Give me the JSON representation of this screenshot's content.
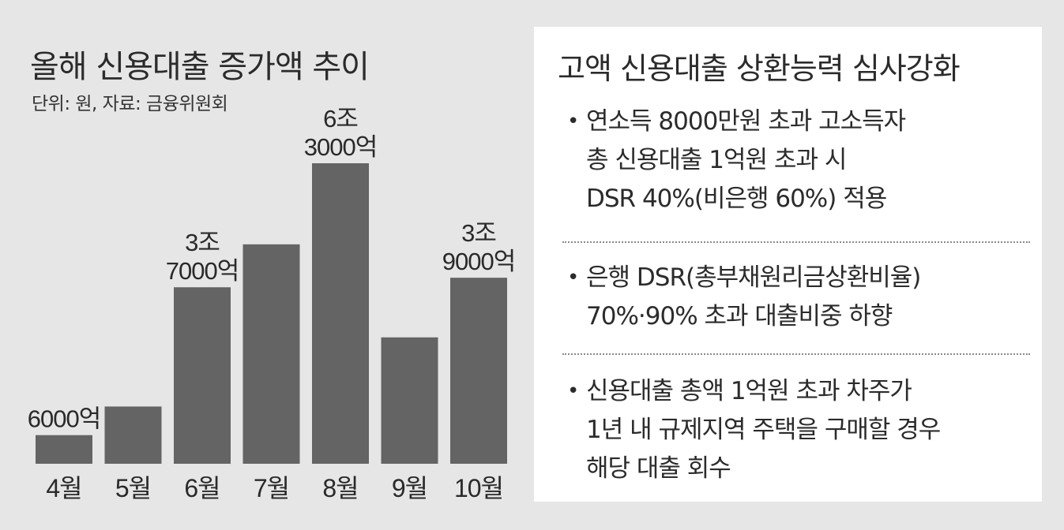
{
  "chart_data": {
    "type": "bar",
    "title": "올해 신용대출 증가액 추이",
    "source": "단위: 원, 자료: 금융위원회",
    "unit": "억원",
    "categories": [
      "4월",
      "5월",
      "6월",
      "7월",
      "8월",
      "9월",
      "10월"
    ],
    "values": [
      6000,
      12000,
      37000,
      46000,
      63000,
      26500,
      39000
    ],
    "data_labels": [
      [
        "6000억"
      ],
      [],
      [
        "3조",
        "7000억"
      ],
      [],
      [
        "6조",
        "3000억"
      ],
      [],
      [
        "3조",
        "9000억"
      ]
    ],
    "ylim": [
      0,
      63000
    ],
    "grid": false,
    "colors": {
      "bar": "#646464",
      "background": "#e6e6e6",
      "panel": "#ffffff"
    }
  },
  "info_panel": {
    "title": "고액 신용대출 상환능력 심사강화",
    "bullet_symbol": "•",
    "items": [
      {
        "lines": [
          "연소득 8000만원 초과 고소득자",
          "총 신용대출 1억원 초과 시",
          "DSR 40%(비은행 60%) 적용"
        ]
      },
      {
        "lines": [
          "은행 DSR(총부채원리금상환비율)",
          "70%·90% 초과 대출비중 하향"
        ]
      },
      {
        "lines": [
          "신용대출 총액 1억원 초과 차주가",
          "1년 내 규제지역 주택을 구매할 경우",
          "해당 대출 회수"
        ]
      }
    ]
  }
}
